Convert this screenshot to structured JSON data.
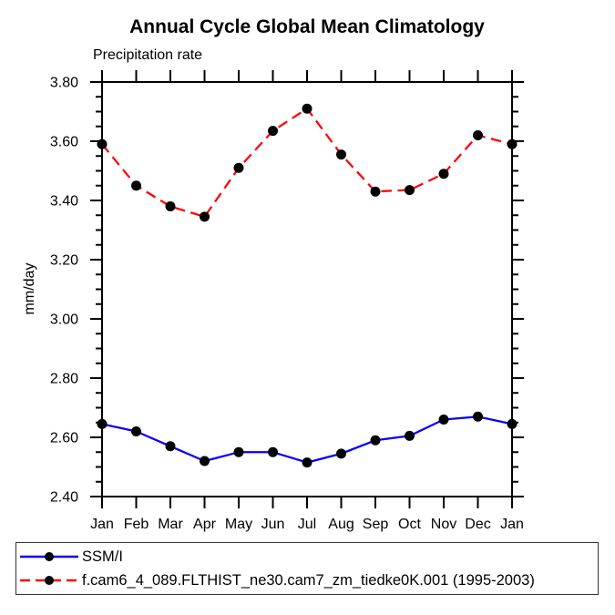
{
  "title": "Annual Cycle Global Mean Climatology",
  "subtitle": "Precipitation rate",
  "ylabel": "mm/day",
  "colors": {
    "obs_line": "#0000ff",
    "model_line": "#ff0000",
    "marker": "#000000",
    "axis": "#000000"
  },
  "legend": {
    "items": [
      {
        "label": "SSM/I",
        "color": "#0000ff",
        "style": "solid"
      },
      {
        "label": "f.cam6_4_089.FLTHIST_ne30.cam7_zm_tiedke0K.001 (1995-2003)",
        "color": "#ff0000",
        "style": "dashed"
      }
    ]
  },
  "chart_data": {
    "type": "line",
    "title": "Annual Cycle Global Mean Climatology",
    "subtitle": "Precipitation rate",
    "xlabel": "",
    "ylabel": "mm/day",
    "categories": [
      "Jan",
      "Feb",
      "Mar",
      "Apr",
      "May",
      "Jun",
      "Jul",
      "Aug",
      "Sep",
      "Oct",
      "Nov",
      "Dec",
      "Jan"
    ],
    "series": [
      {
        "name": "SSM/I",
        "color": "#0000ff",
        "line_style": "solid",
        "marker": "circle",
        "marker_color": "#000000",
        "values": [
          2.645,
          2.62,
          2.57,
          2.52,
          2.55,
          2.55,
          2.515,
          2.545,
          2.59,
          2.605,
          2.66,
          2.67,
          2.645
        ]
      },
      {
        "name": "f.cam6_4_089.FLTHIST_ne30.cam7_zm_tiedke0K.001 (1995-2003)",
        "color": "#ff0000",
        "line_style": "dashed",
        "marker": "circle",
        "marker_color": "#000000",
        "values": [
          3.59,
          3.45,
          3.38,
          3.345,
          3.51,
          3.635,
          3.71,
          3.555,
          3.43,
          3.435,
          3.49,
          3.62,
          3.59
        ]
      }
    ],
    "ylim": [
      2.4,
      3.8
    ],
    "ytick_interval": 0.2,
    "yminor_interval": 0.05,
    "grid": false,
    "legend_position": "bottom-left-box"
  }
}
